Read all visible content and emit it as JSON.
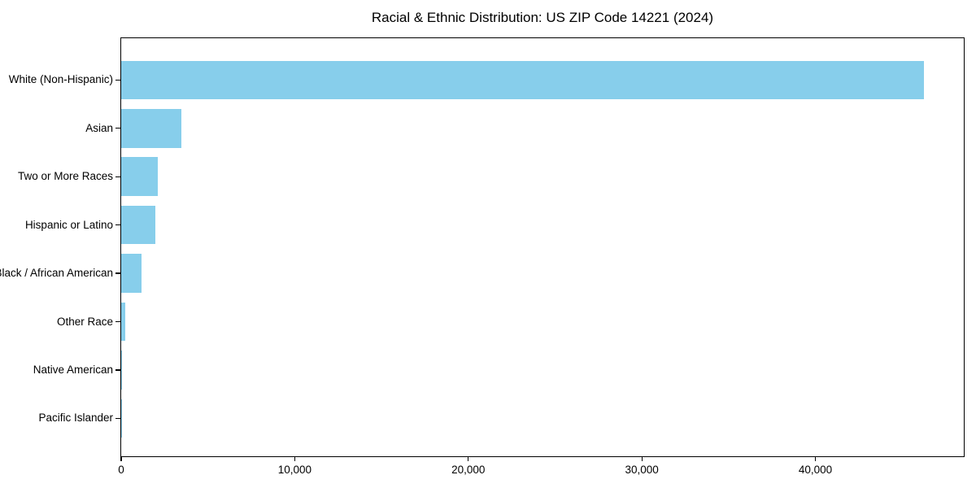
{
  "chart_data": {
    "type": "bar",
    "orientation": "horizontal",
    "title": "Racial & Ethnic Distribution: US ZIP Code 14221 (2024)",
    "xlabel": "",
    "ylabel": "",
    "categories": [
      "White (Non-Hispanic)",
      "Asian",
      "Two or More Races",
      "Hispanic or Latino",
      "Black / African American",
      "Other Race",
      "Native American",
      "Pacific Islander"
    ],
    "values": [
      46250,
      3460,
      2130,
      1960,
      1180,
      230,
      60,
      25
    ],
    "xlim": [
      0,
      48550
    ],
    "x_ticks": [
      0,
      10000,
      20000,
      30000,
      40000
    ],
    "x_tick_labels": [
      "0",
      "10,000",
      "20,000",
      "30,000",
      "40,000"
    ],
    "bar_color": "#87CEEB",
    "axis_color": "#000000",
    "background_color": "#ffffff",
    "grid": false,
    "legend": false
  }
}
